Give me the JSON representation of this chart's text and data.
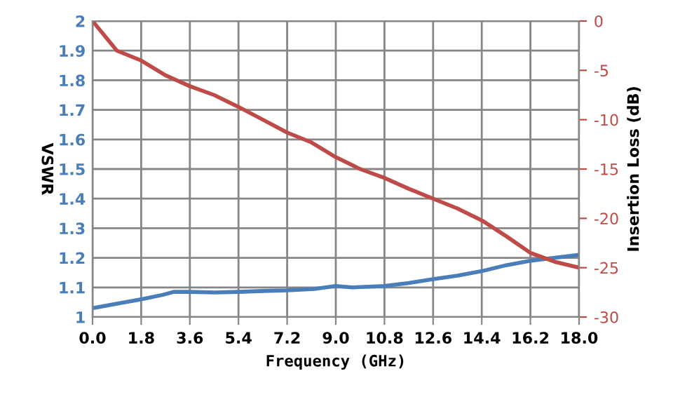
{
  "chart_data": {
    "type": "line",
    "xlabel": "Frequency (GHz)",
    "ylabel": "VSWR",
    "y2label": "Insertion Loss (dB)",
    "xlim": [
      0,
      18
    ],
    "xticks": [
      {
        "value": 0,
        "label": "0.0"
      },
      1.8,
      3.6,
      5.4,
      7.2,
      {
        "value": 9,
        "label": "9.0"
      },
      10.8,
      12.6,
      14.4,
      16.2,
      {
        "value": 18,
        "label": "18.0"
      }
    ],
    "ylim": [
      1,
      2
    ],
    "yticks": [
      1,
      1.1,
      1.2,
      1.3,
      1.4,
      1.5,
      1.6,
      1.7,
      1.8,
      1.9,
      2
    ],
    "y2lim": [
      -30,
      0
    ],
    "y2ticks": [
      -30,
      -25,
      -20,
      -15,
      -10,
      -5,
      0
    ],
    "grid": true,
    "legend": false,
    "marker": "none",
    "line_style": "solid",
    "series": [
      {
        "color": "#4a7ebb",
        "x": [
          0,
          0.9,
          1.8,
          2.6,
          3.0,
          3.6,
          4.5,
          5.4,
          6.3,
          7.2,
          8.2,
          9.0,
          9.6,
          10.8,
          11.7,
          12.6,
          13.5,
          14.4,
          15.3,
          16.2,
          17.1,
          18
        ],
        "values": [
          1.03,
          1.045,
          1.06,
          1.075,
          1.085,
          1.085,
          1.083,
          1.085,
          1.088,
          1.09,
          1.095,
          1.105,
          1.1,
          1.105,
          1.115,
          1.128,
          1.14,
          1.155,
          1.175,
          1.19,
          1.2,
          1.21
        ]
      },
      {
        "color": "#be4b48",
        "axis": "y2",
        "x": [
          0,
          0.9,
          1.8,
          2.7,
          3.6,
          4.5,
          5.4,
          6.3,
          7.2,
          8.1,
          9.0,
          9.9,
          10.8,
          11.7,
          12.6,
          13.5,
          14.4,
          15.3,
          16.2,
          17.1,
          18
        ],
        "values": [
          0,
          -3,
          -4,
          -5.5,
          -6.6,
          -7.5,
          -8.7,
          -10,
          -11.3,
          -12.3,
          -13.8,
          -15,
          -15.9,
          -17,
          -18,
          -19,
          -20.2,
          -21.8,
          -23.5,
          -24.4,
          -25
        ]
      }
    ]
  }
}
